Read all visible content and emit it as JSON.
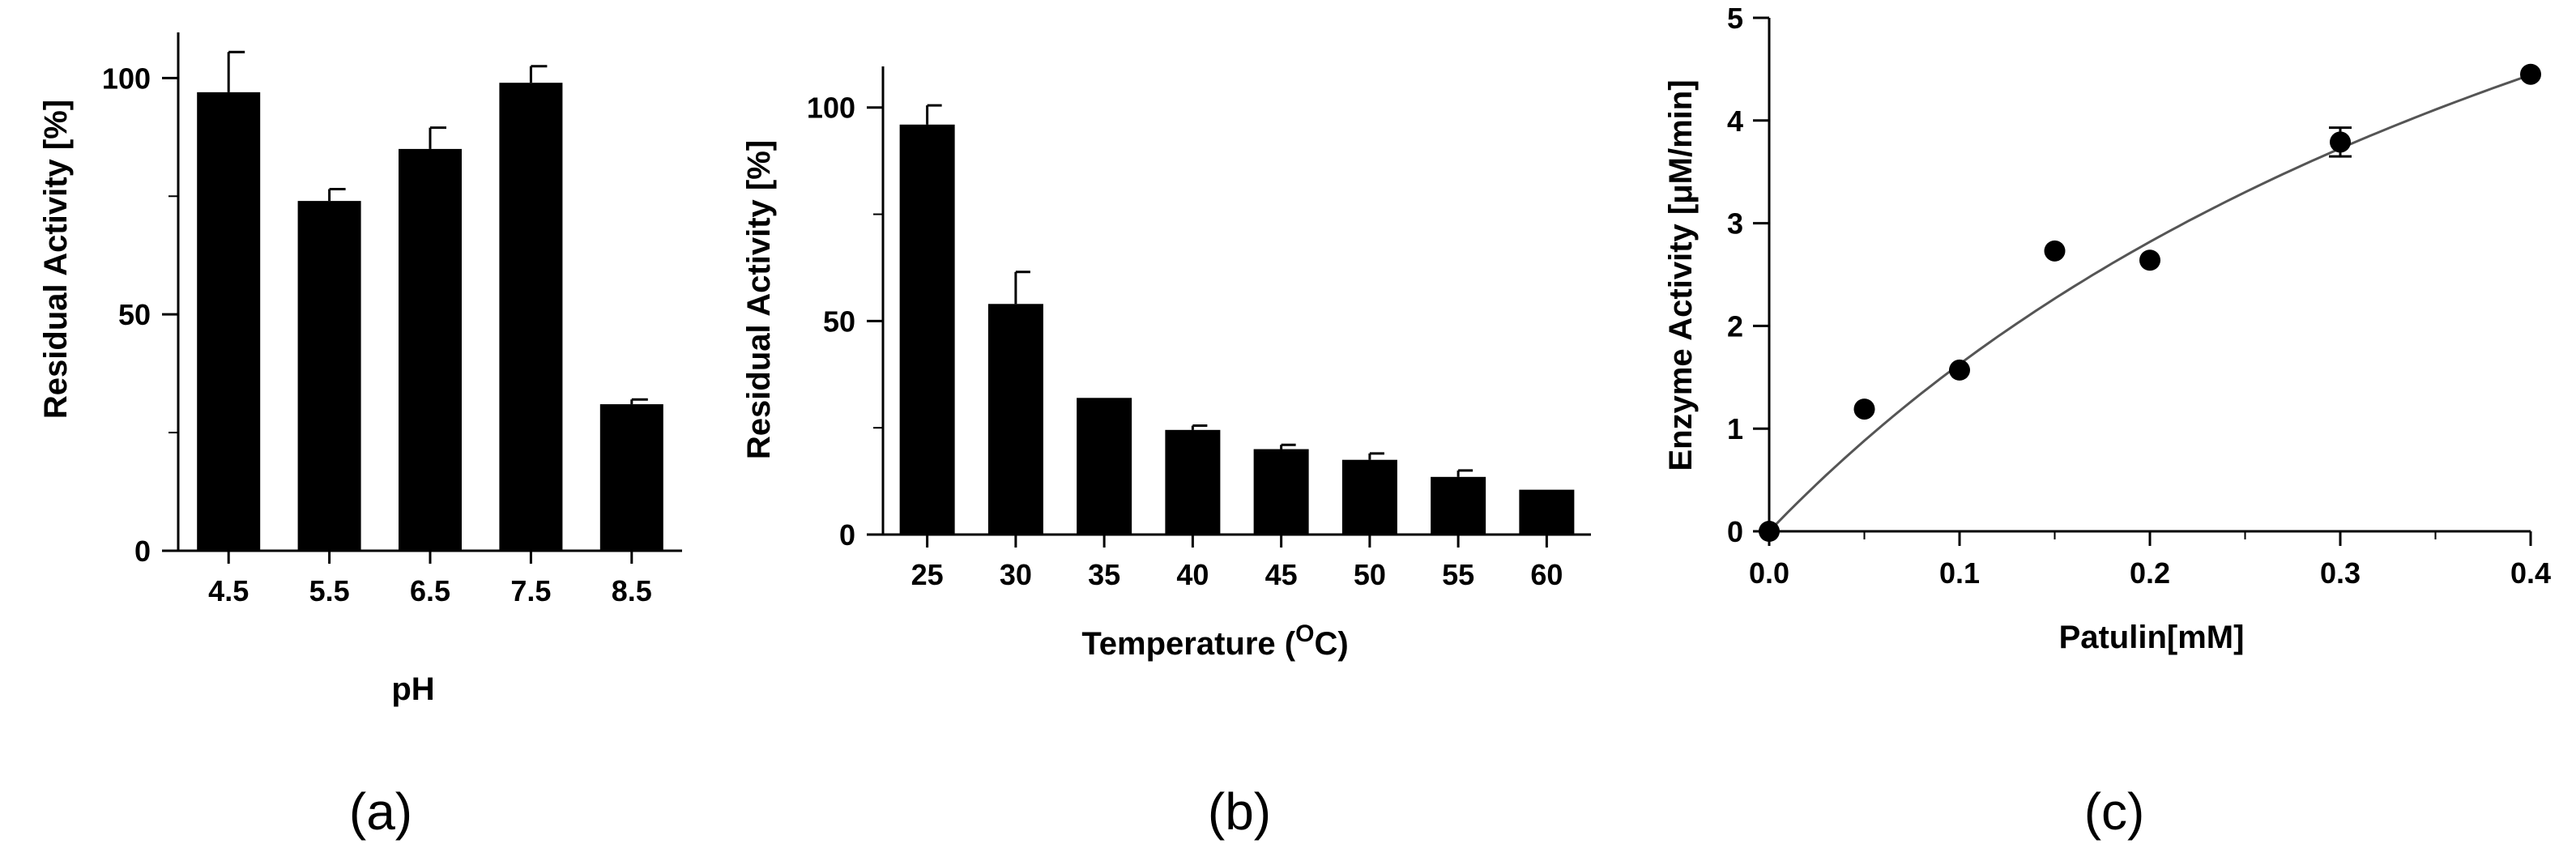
{
  "chart_data": [
    {
      "panel_label": "(a)",
      "type": "bar",
      "xlabel": "pH",
      "ylabel": "Residual Activity [%]",
      "categories": [
        "4.5",
        "5.5",
        "6.5",
        "7.5",
        "8.5"
      ],
      "values": [
        97,
        74,
        85,
        99,
        31
      ],
      "errors": [
        8.5,
        2.5,
        4.5,
        3.5,
        1
      ],
      "ylim": [
        0,
        110
      ],
      "yticks": [
        0,
        50,
        100
      ],
      "grid": false,
      "bar_color": "#000000"
    },
    {
      "panel_label": "(b)",
      "type": "bar",
      "xlabel_prefix": "Temperature (",
      "xlabel_super": "O",
      "xlabel_suffix": "C)",
      "ylabel": "Residual Activity [%]",
      "categories": [
        "25",
        "30",
        "35",
        "40",
        "45",
        "50",
        "55",
        "60"
      ],
      "values": [
        96,
        54,
        32,
        24.5,
        20,
        17.5,
        13.5,
        10.5
      ],
      "errors": [
        4.5,
        7.5,
        0,
        1,
        1,
        1.5,
        1.5,
        0
      ],
      "ylim": [
        0,
        110
      ],
      "yticks": [
        0,
        50,
        100
      ],
      "grid": false,
      "bar_color": "#000000"
    },
    {
      "panel_label": "(c)",
      "type": "scatter",
      "xlabel": "Patulin[mM]",
      "ylabel": "Enzyme Activity [μM/min]",
      "x": [
        0,
        0.05,
        0.1,
        0.15,
        0.2,
        0.3,
        0.4
      ],
      "y": [
        0,
        1.19,
        1.57,
        2.73,
        2.64,
        3.79,
        4.45
      ],
      "errors": [
        0,
        0,
        0,
        0,
        0,
        0.14,
        0
      ],
      "fit": {
        "type": "michaelis-menten",
        "vmax": 10.5,
        "km": 0.545
      },
      "xlim": [
        0,
        0.4
      ],
      "ylim": [
        0,
        5
      ],
      "xticks": [
        "0.0",
        "0.1",
        "0.2",
        "0.3",
        "0.4"
      ],
      "yticks": [
        "0",
        "1",
        "2",
        "3",
        "4",
        "5"
      ],
      "grid": false,
      "marker_color": "#000000",
      "curve_color": "#555555"
    }
  ]
}
